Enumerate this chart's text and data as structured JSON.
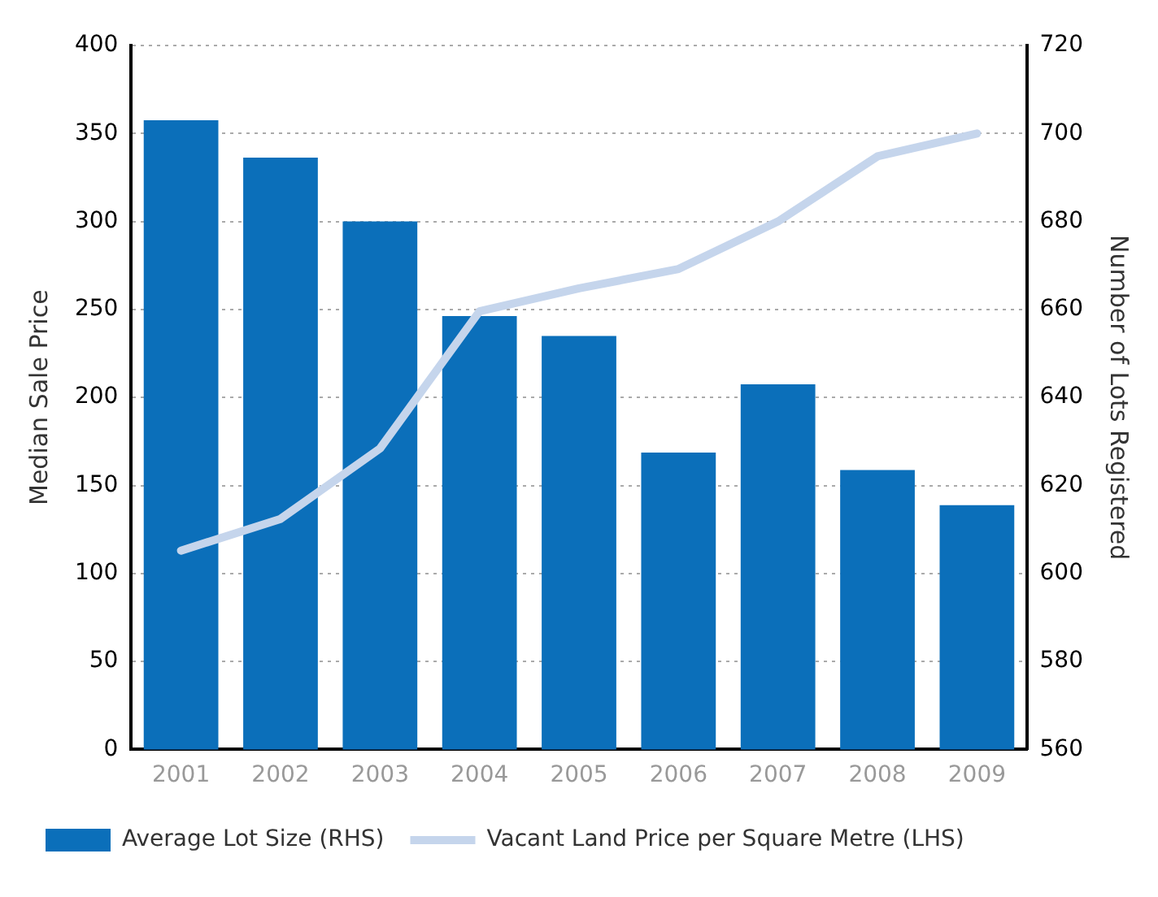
{
  "chart_data": {
    "type": "bar",
    "categories": [
      "2001",
      "2002",
      "2003",
      "2004",
      "2005",
      "2006",
      "2007",
      "2008",
      "2009"
    ],
    "series": [
      {
        "name": "Average Lot Size (RHS)",
        "axis": "y2",
        "color": "#0b6fba",
        "values": [
          703,
          694.5,
          680,
          658.5,
          654,
          627.5,
          643,
          623.5,
          615.5
        ]
      },
      {
        "name": "Vacant Land Price per Square Metre (LHS)",
        "type": "line",
        "axis": "y",
        "color": "#c5d5ec",
        "values": [
          113,
          131,
          171,
          249,
          262,
          273,
          300,
          337,
          350
        ]
      }
    ],
    "ylabel": "Median Sale Price",
    "y2label": "Number of Lots Registered",
    "ylim": [
      0,
      400
    ],
    "yticks": [
      0,
      50,
      100,
      150,
      200,
      250,
      300,
      350,
      400
    ],
    "y2lim": [
      560,
      720
    ],
    "y2ticks": [
      560,
      580,
      600,
      620,
      640,
      660,
      680,
      700,
      720
    ],
    "grid": "y",
    "legend": "bottom",
    "marker": "none",
    "line_style": "solid"
  }
}
